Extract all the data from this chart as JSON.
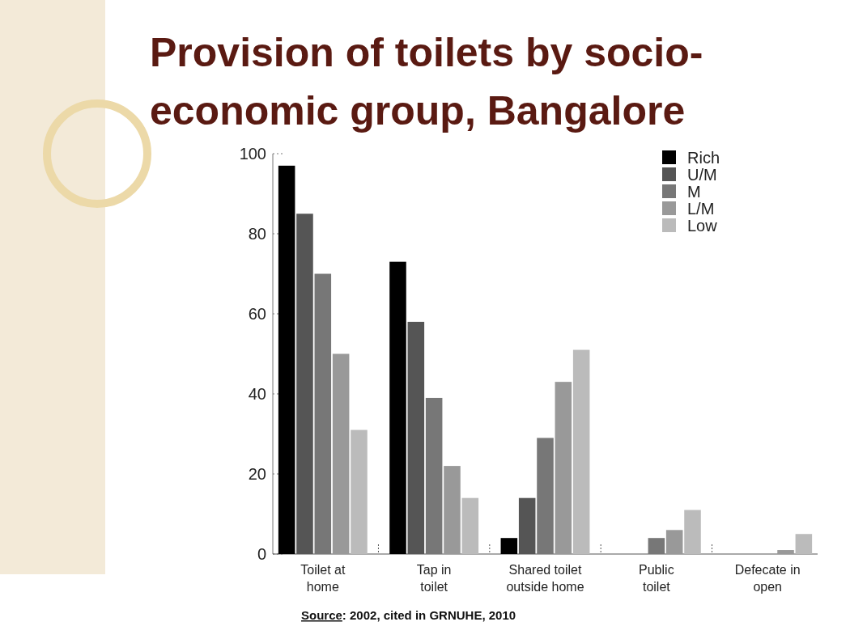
{
  "chart_data": {
    "type": "bar",
    "title": "Provision of toilets by socio-economic group, Bangalore",
    "categories": [
      "Toilet at home",
      "Tap in toilet",
      "Shared toilet outside home",
      "Public toilet",
      "Defecate in open"
    ],
    "series": [
      {
        "name": "Rich",
        "color": "#000000",
        "values": [
          97,
          73,
          4,
          0,
          0
        ]
      },
      {
        "name": "U/M",
        "color": "#555555",
        "values": [
          85,
          58,
          14,
          0,
          0
        ]
      },
      {
        "name": "M",
        "color": "#777777",
        "values": [
          70,
          39,
          29,
          4,
          0
        ]
      },
      {
        "name": "L/M",
        "color": "#999999",
        "values": [
          50,
          22,
          43,
          6,
          1
        ]
      },
      {
        "name": "Low",
        "color": "#bbbbbb",
        "values": [
          31,
          14,
          51,
          11,
          5
        ]
      }
    ],
    "ylim": [
      0,
      100
    ],
    "yticks": [
      0,
      20,
      40,
      60,
      80,
      100
    ],
    "grid": false,
    "legend": "top right",
    "annotations": [
      "Source: 2002, cited in GRNUHE, 2010"
    ]
  }
}
